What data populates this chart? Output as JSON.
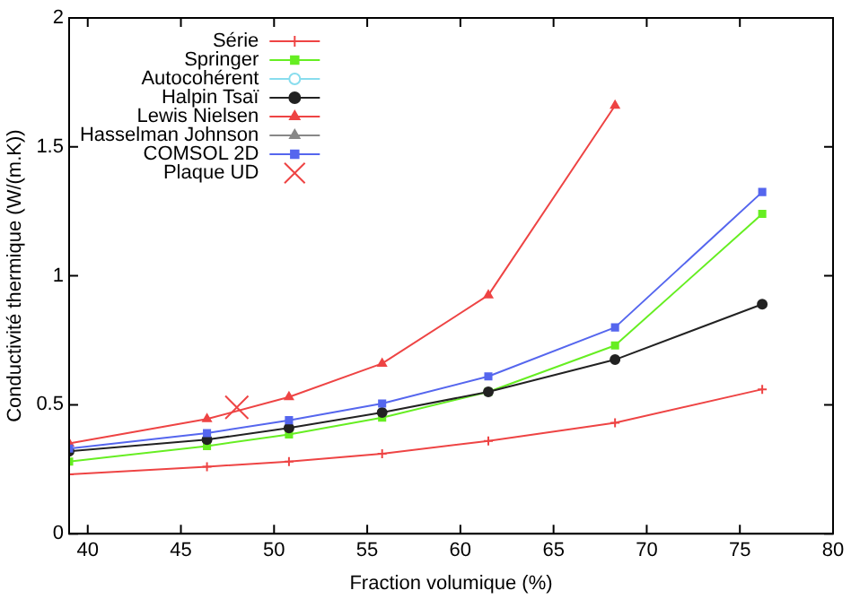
{
  "chart_data": {
    "type": "line",
    "xlabel": "Fraction volumique (%)",
    "ylabel": "Conductivité thermique (W/(m.K))",
    "x": [
      39,
      46.4,
      50.8,
      55.8,
      61.5,
      68.3,
      76.2
    ],
    "xlim": [
      39,
      80
    ],
    "xticks": [
      40,
      45,
      50,
      55,
      60,
      65,
      70,
      75,
      80
    ],
    "ylim": [
      0,
      2
    ],
    "yticks": [
      0,
      0.5,
      1,
      1.5,
      2
    ],
    "grid": false,
    "legend": "top left",
    "series": [
      {
        "name": "Série",
        "color": "#ee4444",
        "marker": "cross",
        "values": [
          0.23,
          0.26,
          0.28,
          0.31,
          0.36,
          0.43,
          0.56
        ]
      },
      {
        "name": "Springer",
        "color": "#66ee22",
        "marker": "square",
        "values": [
          0.28,
          0.34,
          0.385,
          0.45,
          0.55,
          0.73,
          1.24
        ]
      },
      {
        "name": "Autocohérent",
        "color": "#88ddee",
        "marker": "circle",
        "values": [
          null,
          null,
          null,
          null,
          null,
          null,
          null
        ]
      },
      {
        "name": "Halpin Tsaï",
        "color": "#222222",
        "marker": "circle",
        "values": [
          0.32,
          0.365,
          0.41,
          0.47,
          0.55,
          0.675,
          0.89
        ]
      },
      {
        "name": "Lewis Nielsen",
        "color": "#ee4444",
        "marker": "triangle",
        "values": [
          0.35,
          0.445,
          0.53,
          0.66,
          0.925,
          1.66,
          null
        ]
      },
      {
        "name": "Hasselman Johnson",
        "color": "#888888",
        "marker": "triangle",
        "values": [
          null,
          null,
          null,
          null,
          null,
          null,
          null
        ]
      },
      {
        "name": "COMSOL 2D",
        "color": "#5566ee",
        "marker": "square",
        "values": [
          0.33,
          0.39,
          0.44,
          0.505,
          0.61,
          0.8,
          1.325
        ]
      },
      {
        "name": "Plaque UD",
        "color": "#ee4444",
        "type": "scatter",
        "marker": "cross",
        "x": [
          48
        ],
        "values": [
          0.49
        ]
      }
    ]
  }
}
